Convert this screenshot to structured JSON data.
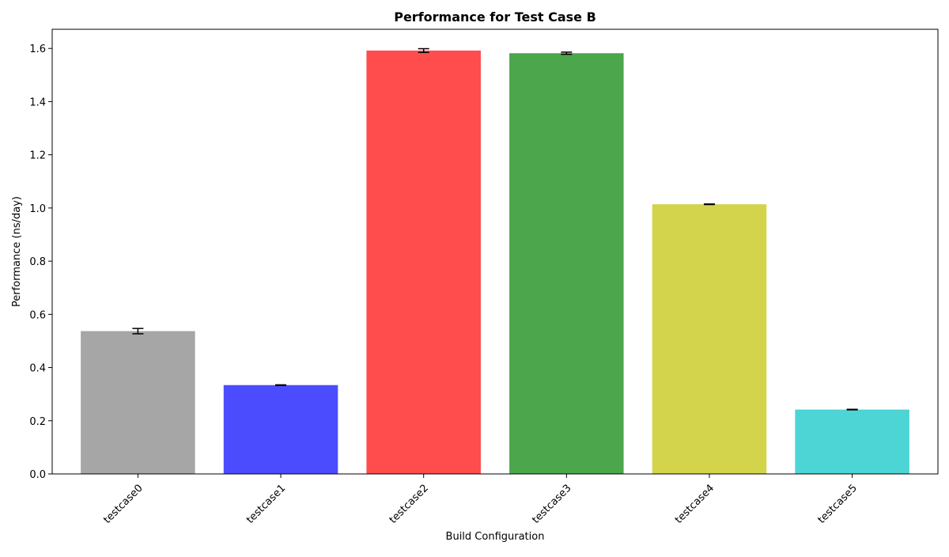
{
  "chart_data": {
    "type": "bar",
    "title": "Performance for Test Case B",
    "xlabel": "Build Configuration",
    "ylabel": "Performance (ns/day)",
    "categories": [
      "testcase0",
      "testcase1",
      "testcase2",
      "testcase3",
      "testcase4",
      "testcase5"
    ],
    "values": [
      0.537,
      0.334,
      1.592,
      1.582,
      1.014,
      0.242
    ],
    "errors": [
      0.01,
      0.001,
      0.007,
      0.004,
      0.001,
      0.001
    ],
    "colors": [
      "#a6a6a6",
      "#4c4cff",
      "#ff4c4c",
      "#4ca64c",
      "#d4d44c",
      "#4dd4d4"
    ],
    "ylim": [
      0,
      1.672
    ],
    "yticks": [
      0.0,
      0.2,
      0.4,
      0.6,
      0.8,
      1.0,
      1.2,
      1.4,
      1.6
    ],
    "ytick_labels": [
      "0.0",
      "0.2",
      "0.4",
      "0.6",
      "0.8",
      "1.0",
      "1.2",
      "1.4",
      "1.6"
    ],
    "grid": false,
    "legend": null
  }
}
